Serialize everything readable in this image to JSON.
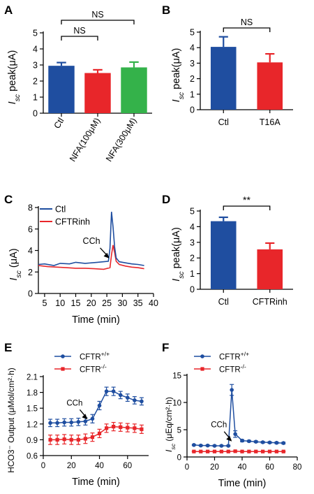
{
  "chart_data": [
    {
      "panel": "A",
      "type": "bar",
      "categories": [
        "Ctl",
        "NFA(100μM)",
        "NFA(300μM)"
      ],
      "values": [
        2.95,
        2.5,
        2.85
      ],
      "errors": [
        0.2,
        0.2,
        0.33
      ],
      "colors": [
        "#1f4ea0",
        "#e8262a",
        "#34b24a"
      ],
      "ylabel_main": "I",
      "ylabel_sub": "sc",
      "ylabel_rest": " peak(μA)",
      "ylim": [
        0,
        5
      ],
      "yticks": [
        "0",
        "1",
        "2",
        "3",
        "4",
        "5"
      ],
      "annotations": [
        {
          "label": "NS",
          "from": 0,
          "to": 1,
          "level": 1
        },
        {
          "label": "NS",
          "from": 0,
          "to": 2,
          "level": 2
        }
      ]
    },
    {
      "panel": "B",
      "type": "bar",
      "categories": [
        "Ctl",
        "T16A"
      ],
      "values": [
        4.05,
        3.05
      ],
      "errors": [
        0.65,
        0.55
      ],
      "colors": [
        "#1f4ea0",
        "#e8262a"
      ],
      "ylabel_main": "I",
      "ylabel_sub": "sc",
      "ylabel_rest": " peak(μA)",
      "ylim": [
        0,
        5
      ],
      "yticks": [
        "0",
        "1",
        "2",
        "3",
        "4",
        "5"
      ],
      "annotations": [
        {
          "label": "NS",
          "from": 0,
          "to": 1,
          "level": 1
        }
      ]
    },
    {
      "panel": "C",
      "type": "line",
      "xlabel": "Time (min)",
      "ylabel_main": "I",
      "ylabel_sub": "sc",
      "ylabel_rest": " (μA)",
      "xlim": [
        3,
        40
      ],
      "ylim": [
        0,
        8
      ],
      "xticks": [
        "5",
        "10",
        "15",
        "20",
        "25",
        "30",
        "35",
        "40"
      ],
      "yticks": [
        "0",
        "2",
        "4",
        "6",
        "8"
      ],
      "series": [
        {
          "name": "Ctl",
          "color": "#1f4ea0",
          "x": [
            3,
            5,
            8,
            10,
            13,
            15,
            18,
            20,
            22,
            24,
            25.5,
            26,
            26.5,
            27,
            27.5,
            28,
            29,
            31,
            33,
            35,
            37
          ],
          "y": [
            2.7,
            2.75,
            2.6,
            2.8,
            2.75,
            2.9,
            2.8,
            2.85,
            2.9,
            2.95,
            3.0,
            4.2,
            7.6,
            6.2,
            4.3,
            3.3,
            2.95,
            2.85,
            2.75,
            2.7,
            2.6
          ]
        },
        {
          "name": "CFTRinh",
          "color": "#e8262a",
          "x": [
            3,
            6,
            9,
            12,
            15,
            18,
            21,
            24,
            26,
            26.5,
            27,
            27.5,
            28,
            29,
            31,
            33,
            35,
            37
          ],
          "y": [
            2.6,
            2.5,
            2.45,
            2.4,
            2.35,
            2.35,
            2.3,
            2.25,
            2.4,
            3.6,
            4.5,
            3.8,
            3.0,
            2.7,
            2.55,
            2.45,
            2.4,
            2.3
          ]
        }
      ],
      "annotations": [
        {
          "label": "CCh",
          "x": 26,
          "y": 3.2
        }
      ]
    },
    {
      "panel": "D",
      "type": "bar",
      "categories": [
        "Ctl",
        "CFTRinh"
      ],
      "values": [
        4.35,
        2.55
      ],
      "errors": [
        0.25,
        0.4
      ],
      "colors": [
        "#1f4ea0",
        "#e8262a"
      ],
      "ylabel_main": "I",
      "ylabel_sub": "sc",
      "ylabel_rest": " peak(μA)",
      "ylim": [
        0,
        5
      ],
      "yticks": [
        "0",
        "1",
        "2",
        "3",
        "4",
        "5"
      ],
      "annotations": [
        {
          "label": "**",
          "from": 0,
          "to": 1,
          "level": 1
        }
      ]
    },
    {
      "panel": "E",
      "type": "line",
      "xlabel": "Time (min)",
      "ylabel": "HCO3⁻ Output (μMol/cm²·h)",
      "xlim": [
        0,
        75
      ],
      "ylim": [
        0.6,
        2.1
      ],
      "xticks": [
        "0",
        "20",
        "40",
        "60"
      ],
      "yticks": [
        "0.6",
        "0.9",
        "1.2",
        "1.5",
        "1.8",
        "2.1"
      ],
      "series": [
        {
          "name": "CFTR+/+",
          "name_base": "CFTR",
          "name_sup": "+/+",
          "color": "#1f4ea0",
          "marker": "circle",
          "x": [
            5,
            10,
            15,
            20,
            25,
            30,
            35,
            40,
            45,
            50,
            55,
            60,
            65,
            70
          ],
          "y": [
            1.22,
            1.22,
            1.23,
            1.23,
            1.24,
            1.25,
            1.3,
            1.55,
            1.82,
            1.82,
            1.75,
            1.7,
            1.65,
            1.63
          ],
          "err": [
            0.07,
            0.07,
            0.07,
            0.07,
            0.07,
            0.07,
            0.08,
            0.08,
            0.08,
            0.08,
            0.07,
            0.07,
            0.07,
            0.07
          ]
        },
        {
          "name": "CFTR-/-",
          "name_base": "CFTR",
          "name_sup": "-/-",
          "color": "#e8262a",
          "marker": "square",
          "x": [
            5,
            10,
            15,
            20,
            25,
            30,
            35,
            40,
            45,
            50,
            55,
            60,
            65,
            70
          ],
          "y": [
            0.9,
            0.9,
            0.91,
            0.9,
            0.9,
            0.92,
            0.95,
            1.02,
            1.12,
            1.15,
            1.14,
            1.13,
            1.12,
            1.1
          ],
          "err": [
            0.09,
            0.09,
            0.09,
            0.09,
            0.09,
            0.09,
            0.08,
            0.08,
            0.08,
            0.08,
            0.08,
            0.08,
            0.08,
            0.08
          ]
        }
      ],
      "annotations": [
        {
          "label": "CCh",
          "x": 30,
          "y": 1.26
        }
      ]
    },
    {
      "panel": "F",
      "type": "line",
      "xlabel": "Time (min)",
      "ylabel_main": "I",
      "ylabel_sub": "sc",
      "ylabel_rest": " (μEq/cm²·h)",
      "xlim": [
        0,
        80
      ],
      "ylim": [
        0,
        15
      ],
      "xticks": [
        "0",
        "20",
        "40",
        "60",
        "80"
      ],
      "yticks": [
        "0",
        "5",
        "10",
        "15"
      ],
      "series": [
        {
          "name": "CFTR+/+",
          "name_base": "CFTR",
          "name_sup": "+/+",
          "color": "#1f4ea0",
          "marker": "circle",
          "x": [
            5,
            10,
            15,
            20,
            25,
            30,
            32.5,
            35,
            40,
            45,
            50,
            55,
            60,
            65,
            70
          ],
          "y": [
            2.2,
            2.1,
            2.1,
            2.05,
            2.05,
            2.05,
            12.3,
            4.2,
            3.0,
            2.9,
            2.8,
            2.7,
            2.65,
            2.6,
            2.55
          ],
          "err": [
            0.1,
            0.1,
            0.1,
            0.1,
            0.1,
            0.1,
            1.0,
            0.6,
            0.2,
            0.15,
            0.15,
            0.15,
            0.15,
            0.15,
            0.15
          ]
        },
        {
          "name": "CFTR-/-",
          "name_base": "CFTR",
          "name_sup": "-/-",
          "color": "#e8262a",
          "marker": "square",
          "x": [
            5,
            10,
            15,
            20,
            25,
            30,
            35,
            40,
            45,
            50,
            55,
            60,
            65,
            70
          ],
          "y": [
            1.0,
            1.0,
            1.0,
            1.0,
            1.0,
            1.0,
            1.05,
            1.0,
            1.0,
            1.0,
            1.0,
            1.0,
            1.0,
            1.0
          ],
          "err": [
            0.05,
            0.05,
            0.05,
            0.05,
            0.05,
            0.05,
            0.05,
            0.05,
            0.05,
            0.05,
            0.05,
            0.05,
            0.05,
            0.05
          ]
        }
      ],
      "annotations": [
        {
          "label": "CCh",
          "x": 31,
          "y": 2.6
        }
      ]
    }
  ]
}
